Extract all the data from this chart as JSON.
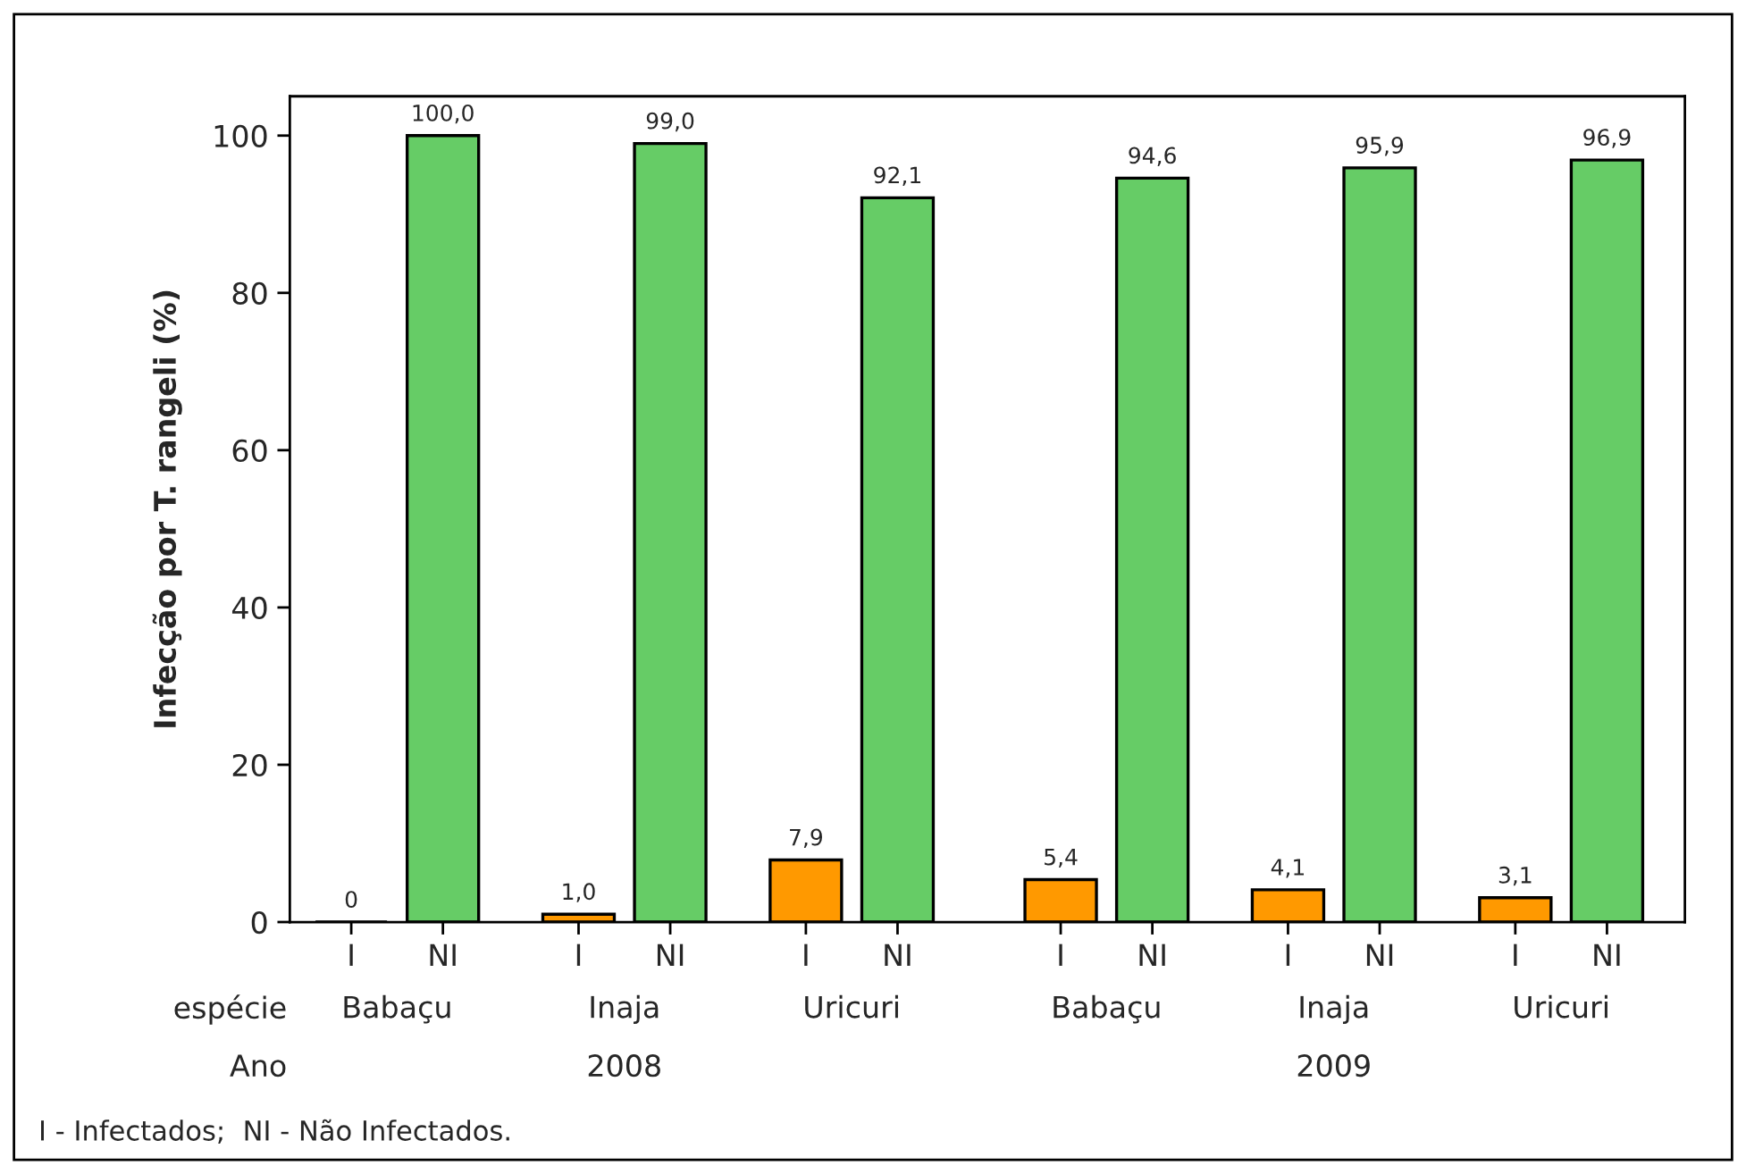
{
  "chart_data": {
    "type": "bar",
    "ylabel": "Infecção por T. rangeli (%)",
    "categories": [
      "I",
      "NI",
      "I",
      "NI",
      "I",
      "NI",
      "I",
      "NI",
      "I",
      "NI",
      "I",
      "NI"
    ],
    "values": [
      0,
      100.0,
      1.0,
      99.0,
      7.9,
      92.1,
      5.4,
      94.6,
      4.1,
      95.9,
      3.1,
      96.9
    ],
    "colors": [
      "#000000",
      "#66cc66",
      "#ff9900",
      "#66cc66",
      "#ff9900",
      "#66cc66",
      "#ff9900",
      "#66cc66",
      "#ff9900",
      "#66cc66",
      "#ff9900",
      "#66cc66"
    ],
    "value_labels": [
      "0",
      "100,0",
      "1,0",
      "99,0",
      "7,9",
      "92,1",
      "5,4",
      "94,6",
      "4,1",
      "95,9",
      "3,1",
      "96,9"
    ],
    "ylim": [
      0,
      105
    ],
    "yticks": [
      0,
      20,
      40,
      60,
      80,
      100
    ],
    "annotations": [
      "espécie",
      "Ano",
      "Babaçu",
      "Inaja",
      "Uricuri",
      "Babaçu",
      "Inaja",
      "Uricuri",
      "2008",
      "2009",
      "I - Infectados;  NI - Não Infectados."
    ]
  }
}
